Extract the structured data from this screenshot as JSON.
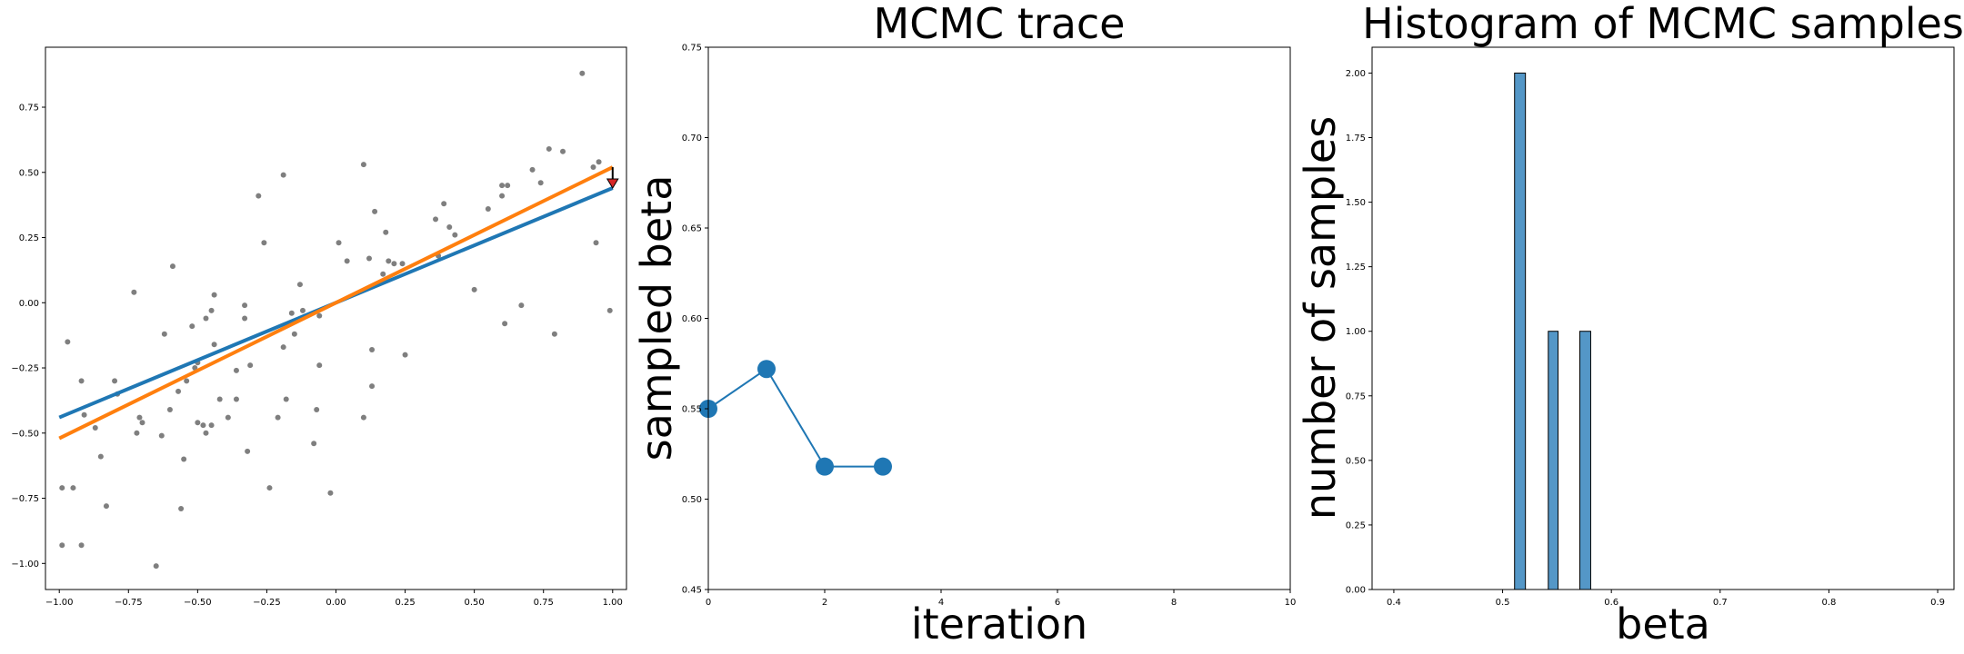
{
  "chart_data": [
    {
      "type": "scatter",
      "title": "",
      "xlabel": "",
      "ylabel": "",
      "xlim": [
        -1.05,
        1.05
      ],
      "ylim": [
        -1.1,
        0.98
      ],
      "xticks": [
        -1.0,
        -0.75,
        -0.5,
        -0.25,
        0.0,
        0.25,
        0.5,
        0.75,
        1.0
      ],
      "xtick_labels": [
        "−1.00",
        "−0.75",
        "−0.50",
        "−0.25",
        "0.00",
        "0.25",
        "0.50",
        "0.75",
        "1.00"
      ],
      "yticks": [
        -1.0,
        -0.75,
        -0.5,
        -0.25,
        0.0,
        0.25,
        0.5,
        0.75
      ],
      "ytick_labels": [
        "−1.00",
        "−0.75",
        "−0.50",
        "−0.25",
        "0.00",
        "0.25",
        "0.50",
        "0.75"
      ],
      "grid": false,
      "points": [
        [
          -0.99,
          -0.71
        ],
        [
          -0.99,
          -0.93
        ],
        [
          -0.97,
          -0.15
        ],
        [
          -0.95,
          -0.71
        ],
        [
          -0.92,
          -0.93
        ],
        [
          -0.92,
          -0.3
        ],
        [
          -0.91,
          -0.43
        ],
        [
          -0.87,
          -0.48
        ],
        [
          -0.85,
          -0.59
        ],
        [
          -0.83,
          -0.78
        ],
        [
          -0.8,
          -0.3
        ],
        [
          -0.79,
          -0.35
        ],
        [
          -0.73,
          0.04
        ],
        [
          -0.72,
          -0.5
        ],
        [
          -0.71,
          -0.44
        ],
        [
          -0.7,
          -0.46
        ],
        [
          -0.65,
          -1.01
        ],
        [
          -0.63,
          -0.51
        ],
        [
          -0.62,
          -0.12
        ],
        [
          -0.6,
          -0.41
        ],
        [
          -0.59,
          0.14
        ],
        [
          -0.57,
          -0.34
        ],
        [
          -0.56,
          -0.79
        ],
        [
          -0.55,
          -0.6
        ],
        [
          -0.54,
          -0.3
        ],
        [
          -0.52,
          -0.09
        ],
        [
          -0.51,
          -0.25
        ],
        [
          -0.5,
          -0.23
        ],
        [
          -0.5,
          -0.46
        ],
        [
          -0.48,
          -0.47
        ],
        [
          -0.47,
          -0.06
        ],
        [
          -0.47,
          -0.5
        ],
        [
          -0.45,
          -0.47
        ],
        [
          -0.45,
          -0.03
        ],
        [
          -0.44,
          0.03
        ],
        [
          -0.44,
          -0.16
        ],
        [
          -0.42,
          -0.37
        ],
        [
          -0.39,
          -0.44
        ],
        [
          -0.36,
          -0.37
        ],
        [
          -0.36,
          -0.26
        ],
        [
          -0.33,
          -0.06
        ],
        [
          -0.33,
          -0.01
        ],
        [
          -0.32,
          -0.57
        ],
        [
          -0.31,
          -0.24
        ],
        [
          -0.28,
          0.41
        ],
        [
          -0.26,
          0.23
        ],
        [
          -0.24,
          -0.71
        ],
        [
          -0.21,
          -0.44
        ],
        [
          -0.19,
          0.49
        ],
        [
          -0.19,
          -0.17
        ],
        [
          -0.18,
          -0.37
        ],
        [
          -0.16,
          -0.04
        ],
        [
          -0.15,
          -0.12
        ],
        [
          -0.13,
          0.07
        ],
        [
          -0.12,
          -0.03
        ],
        [
          -0.08,
          -0.54
        ],
        [
          -0.07,
          -0.41
        ],
        [
          -0.06,
          -0.24
        ],
        [
          -0.06,
          -0.05
        ],
        [
          -0.02,
          -0.73
        ],
        [
          0.01,
          0.23
        ],
        [
          0.04,
          0.16
        ],
        [
          0.1,
          0.53
        ],
        [
          0.1,
          -0.44
        ],
        [
          0.12,
          0.17
        ],
        [
          0.13,
          -0.18
        ],
        [
          0.13,
          -0.32
        ],
        [
          0.14,
          0.35
        ],
        [
          0.17,
          0.11
        ],
        [
          0.18,
          0.27
        ],
        [
          0.19,
          0.16
        ],
        [
          0.21,
          0.15
        ],
        [
          0.24,
          0.15
        ],
        [
          0.25,
          -0.2
        ],
        [
          0.36,
          0.32
        ],
        [
          0.37,
          0.18
        ],
        [
          0.39,
          0.38
        ],
        [
          0.41,
          0.29
        ],
        [
          0.43,
          0.26
        ],
        [
          0.5,
          0.05
        ],
        [
          0.55,
          0.36
        ],
        [
          0.6,
          0.45
        ],
        [
          0.6,
          0.41
        ],
        [
          0.61,
          -0.08
        ],
        [
          0.62,
          0.45
        ],
        [
          0.67,
          -0.01
        ],
        [
          0.71,
          0.51
        ],
        [
          0.74,
          0.46
        ],
        [
          0.77,
          0.59
        ],
        [
          0.79,
          -0.12
        ],
        [
          0.82,
          0.58
        ],
        [
          0.89,
          0.88
        ],
        [
          0.93,
          0.52
        ],
        [
          0.94,
          0.23
        ],
        [
          0.95,
          0.54
        ],
        [
          0.99,
          -0.03
        ]
      ],
      "lines": [
        {
          "color": "#1f77b4",
          "from": [
            -1.0,
            -0.44
          ],
          "to": [
            1.0,
            0.44
          ]
        },
        {
          "color": "#ff7f0e",
          "from": [
            -1.0,
            -0.52
          ],
          "to": [
            1.0,
            0.52
          ]
        }
      ],
      "arrow": {
        "x": 1.0,
        "from_y": 0.52,
        "to_y": 0.44,
        "color": "#d62728"
      },
      "point_color": "#7f7f7f"
    },
    {
      "type": "line",
      "title": "MCMC trace",
      "xlabel": "iteration",
      "ylabel": "sampled beta",
      "xlim": [
        0,
        10
      ],
      "ylim": [
        0.45,
        0.75
      ],
      "xticks": [
        0,
        2,
        4,
        6,
        8,
        10
      ],
      "xtick_labels": [
        "0",
        "2",
        "4",
        "6",
        "8",
        "10"
      ],
      "yticks": [
        0.45,
        0.5,
        0.55,
        0.6,
        0.65,
        0.7,
        0.75
      ],
      "ytick_labels": [
        "0.45",
        "0.50",
        "0.55",
        "0.60",
        "0.65",
        "0.70",
        "0.75"
      ],
      "grid": false,
      "color": "#1f77b4",
      "x": [
        0,
        1,
        2,
        3
      ],
      "y": [
        0.55,
        0.572,
        0.518,
        0.518
      ]
    },
    {
      "type": "bar",
      "title": "Histogram of MCMC samples",
      "xlabel": "beta",
      "ylabel": "number of samples",
      "xlim": [
        0.38,
        0.915
      ],
      "ylim": [
        0,
        2.1
      ],
      "xticks": [
        0.4,
        0.5,
        0.6,
        0.7,
        0.8,
        0.9
      ],
      "xtick_labels": [
        "0.4",
        "0.5",
        "0.6",
        "0.7",
        "0.8",
        "0.9"
      ],
      "yticks": [
        0,
        0.25,
        0.5,
        0.75,
        1.0,
        1.25,
        1.5,
        1.75,
        2.0
      ],
      "ytick_labels": [
        "0.00",
        "0.25",
        "0.50",
        "0.75",
        "1.00",
        "1.25",
        "1.50",
        "1.75",
        "2.00"
      ],
      "grid": false,
      "color": "#5497c7",
      "bins": [
        {
          "start": 0.511,
          "end": 0.521,
          "count": 2
        },
        {
          "start": 0.542,
          "end": 0.551,
          "count": 1
        },
        {
          "start": 0.571,
          "end": 0.581,
          "count": 1
        }
      ]
    }
  ]
}
